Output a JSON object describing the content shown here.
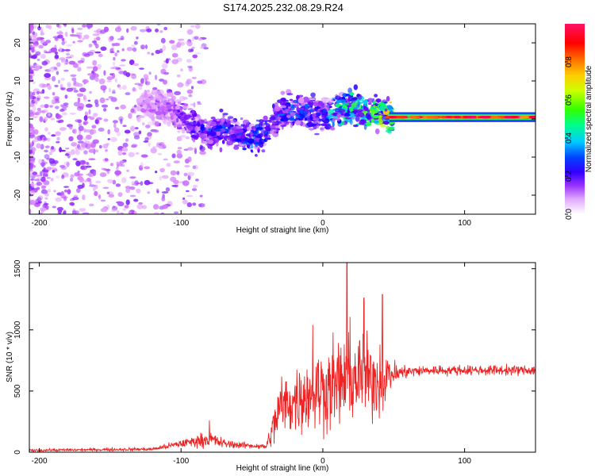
{
  "title": "S174.2025.232.08.29.R24",
  "colors": {
    "snr_line": "#ee2222",
    "axis": "#000000"
  },
  "chart_data": [
    {
      "type": "heatmap",
      "name": "spectrogram",
      "xlabel": "Height of straight line (km)",
      "ylabel": "Frequency (Hz)",
      "xlim": [
        -207,
        150
      ],
      "ylim": [
        -25,
        25
      ],
      "xticks": [
        -200,
        -100,
        0,
        100
      ],
      "xtick_labels": [
        "-200",
        "-100",
        "0",
        "100"
      ],
      "yticks": [
        -20,
        -10,
        0,
        10,
        20
      ],
      "ytick_labels": [
        "-20",
        "-10",
        "0",
        "10",
        "20"
      ],
      "colorbar": {
        "label": "Normalized spectral amplitude",
        "range": [
          0.0,
          1.0
        ],
        "ticks": [
          0.0,
          0.2,
          0.4,
          0.6,
          0.8
        ],
        "tick_labels": [
          "0.0",
          "0.2",
          "0.4",
          "0.6",
          "0.8"
        ],
        "colormap": [
          "#ffffff",
          "#cc66ff",
          "#6600ff",
          "#0000ff",
          "#00ccff",
          "#00ff66",
          "#66ff00",
          "#ffff00",
          "#ffaa00",
          "#ff0000",
          "#ff0066"
        ]
      },
      "ridge": {
        "description": "dominant frequency trace vs height",
        "x": [
          -130,
          -110,
          -100,
          -90,
          -80,
          -70,
          -60,
          -50,
          -40,
          -30,
          -20,
          -10,
          0,
          10,
          20,
          30,
          40,
          47,
          60,
          80,
          100,
          120,
          150
        ],
        "freq_hz": [
          4,
          3,
          1,
          -2,
          -4,
          -2,
          -4,
          -5,
          -3,
          1,
          3,
          2,
          1,
          2,
          3,
          2,
          2,
          1,
          0.5,
          0.5,
          0.5,
          0.5,
          0.5
        ],
        "amplitude": [
          0.12,
          0.15,
          0.2,
          0.25,
          0.3,
          0.3,
          0.3,
          0.35,
          0.3,
          0.3,
          0.35,
          0.3,
          0.3,
          0.45,
          0.5,
          0.5,
          0.6,
          0.7,
          0.85,
          0.9,
          0.9,
          0.9,
          0.9
        ]
      }
    },
    {
      "type": "line",
      "name": "snr",
      "xlabel": "Height of straight line (km)",
      "ylabel": "SNR (10 * v/v)",
      "xlim": [
        -207,
        150
      ],
      "ylim": [
        0,
        1550
      ],
      "xticks": [
        -200,
        -100,
        0,
        100
      ],
      "xtick_labels": [
        "-200",
        "-100",
        "0",
        "100"
      ],
      "yticks": [
        0,
        500,
        1000,
        1500
      ],
      "ytick_labels": [
        "0",
        "500",
        "1000",
        "1500"
      ],
      "envelope": {
        "x": [
          -207,
          -120,
          -100,
          -90,
          -80,
          -70,
          -60,
          -40,
          -35,
          -30,
          -20,
          -10,
          0,
          10,
          20,
          30,
          40,
          50,
          60,
          80,
          100,
          120,
          150
        ],
        "mean": [
          15,
          25,
          70,
          90,
          110,
          70,
          60,
          45,
          200,
          380,
          420,
          480,
          520,
          560,
          620,
          600,
          600,
          640,
          660,
          670,
          670,
          670,
          670
        ],
        "spread": [
          15,
          20,
          50,
          70,
          100,
          60,
          40,
          30,
          250,
          350,
          380,
          450,
          500,
          550,
          600,
          500,
          450,
          150,
          70,
          60,
          60,
          60,
          60
        ]
      },
      "peaks": [
        {
          "x": -80,
          "y": 260
        },
        {
          "x": -7,
          "y": 1040
        },
        {
          "x": 17,
          "y": 1560
        },
        {
          "x": 29,
          "y": 1260
        },
        {
          "x": 42,
          "y": 1290
        }
      ]
    }
  ]
}
